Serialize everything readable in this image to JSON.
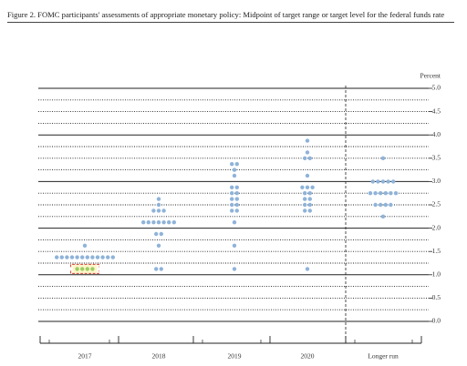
{
  "chart_data": {
    "type": "dot",
    "title": "Figure 2. FOMC participants' assessments of appropriate monetary policy: Midpoint of target range or target level for the federal funds rate",
    "y_axis_label": "Percent",
    "ylim": [
      0,
      5
    ],
    "yticks": [
      {
        "value": 0,
        "label": "0.0"
      },
      0.5,
      {
        "value": 1,
        "label": "1.0"
      },
      1.5,
      {
        "value": 2,
        "label": "2.0"
      },
      2.5,
      {
        "value": 3,
        "label": "3.0"
      },
      3.5,
      {
        "value": 4,
        "label": "4.0"
      },
      4.5,
      {
        "value": 5,
        "label": "5.0"
      }
    ],
    "categories": [
      "2017",
      "2018",
      "2019",
      "2020",
      "Longer run"
    ],
    "dot_color": "#8fb3d9",
    "highlight_color": "#9ccc65",
    "groups": [
      [
        {
          "value": 1.625,
          "count": 1
        },
        {
          "value": 1.375,
          "count": 12
        },
        {
          "value": 1.125,
          "count": 4,
          "highlight": true
        }
      ],
      [
        {
          "value": 2.625,
          "count": 1
        },
        {
          "value": 2.5,
          "count": 1
        },
        {
          "value": 2.375,
          "count": 3
        },
        {
          "value": 2.125,
          "count": 7
        },
        {
          "value": 1.875,
          "count": 2
        },
        {
          "value": 1.625,
          "count": 1
        },
        {
          "value": 1.125,
          "count": 2
        }
      ],
      [
        {
          "value": 3.375,
          "count": 2
        },
        {
          "value": 3.25,
          "count": 1
        },
        {
          "value": 3.125,
          "count": 1
        },
        {
          "value": 2.875,
          "count": 2
        },
        {
          "value": 2.75,
          "count": 2
        },
        {
          "value": 2.625,
          "count": 2
        },
        {
          "value": 2.5,
          "count": 2
        },
        {
          "value": 2.375,
          "count": 2
        },
        {
          "value": 2.125,
          "count": 1
        },
        {
          "value": 1.625,
          "count": 1
        },
        {
          "value": 1.125,
          "count": 1
        }
      ],
      [
        {
          "value": 3.875,
          "count": 1
        },
        {
          "value": 3.625,
          "count": 1
        },
        {
          "value": 3.5,
          "count": 2
        },
        {
          "value": 3.125,
          "count": 1
        },
        {
          "value": 2.875,
          "count": 3
        },
        {
          "value": 2.75,
          "count": 2
        },
        {
          "value": 2.625,
          "count": 2
        },
        {
          "value": 2.5,
          "count": 2
        },
        {
          "value": 2.375,
          "count": 2
        },
        {
          "value": 1.125,
          "count": 1
        }
      ],
      [
        {
          "value": 3.5,
          "count": 1
        },
        {
          "value": 3,
          "count": 5
        },
        {
          "value": 2.75,
          "count": 6
        },
        {
          "value": 2.5,
          "count": 4
        },
        {
          "value": 2.25,
          "count": 1
        }
      ]
    ]
  }
}
